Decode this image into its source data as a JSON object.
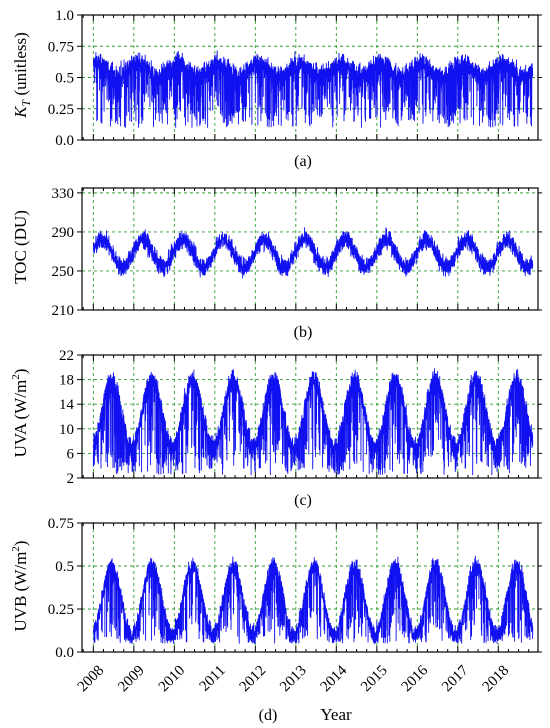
{
  "chart_data": [
    {
      "type": "line",
      "panel_label": "(a)",
      "ylabel": "K_T (unitless)",
      "ylabel_main": "K",
      "ylabel_sub": "T",
      "ylabel_rest": " (unitless)",
      "ylim": [
        0.0,
        1.0
      ],
      "yticks": [
        "0.0",
        "0.25",
        "0.5",
        "0.75",
        "1.0"
      ],
      "ytick_values": [
        0,
        0.25,
        0.5,
        0.75,
        1.0
      ],
      "grid": true,
      "series_color": "#1010f0",
      "grid_color": "#2e9e2e",
      "seasonal": {
        "mean": 0.56,
        "amplitude": 0.05,
        "peak_phase": 0.1,
        "noise": 0.08,
        "dip_probability": 0.22,
        "dip_min": 0.1,
        "max": 0.78,
        "min": 0.08
      }
    },
    {
      "type": "line",
      "panel_label": "(b)",
      "ylabel": "TOC (DU)",
      "ylim": [
        210,
        335
      ],
      "yticks": [
        "210",
        "250",
        "290",
        "330"
      ],
      "ytick_values": [
        210,
        250,
        290,
        330
      ],
      "grid": true,
      "series_color": "#1010f0",
      "grid_color": "#2e9e2e",
      "seasonal": {
        "mean": 268,
        "amplitude": 14,
        "peak_phase": 0.22,
        "noise": 9,
        "dip_probability": 0.0,
        "dip_min": 0,
        "max": 330,
        "min": 222
      }
    },
    {
      "type": "line",
      "panel_label": "(c)",
      "ylabel": "UVA (W/m²)",
      "ylabel_main": "UVA (W/m",
      "ylabel_sup": "2",
      "ylabel_rest": ")",
      "ylim": [
        2,
        22
      ],
      "yticks": [
        "2",
        "6",
        "10",
        "14",
        "18",
        "22"
      ],
      "ytick_values": [
        2,
        6,
        10,
        14,
        18,
        22
      ],
      "grid": true,
      "series_color": "#1010f0",
      "grid_color": "#2e9e2e",
      "seasonal": {
        "mean": 12.5,
        "amplitude": 5.5,
        "peak_phase": 0.45,
        "noise": 1.6,
        "dip_probability": 0.22,
        "dip_min": 2.5,
        "max": 20.5,
        "min": 2.5
      }
    },
    {
      "type": "line",
      "panel_label": "(d)",
      "ylabel": "UVB (W/m²)",
      "ylabel_main": "UVB (W/m",
      "ylabel_sup": "2",
      "ylabel_rest": ")",
      "xlabel": "Year",
      "ylim": [
        0.0,
        0.75
      ],
      "yticks": [
        "0.0",
        "0.25",
        "0.5",
        "0.75"
      ],
      "ytick_values": [
        0,
        0.25,
        0.5,
        0.75
      ],
      "grid": true,
      "series_color": "#1010f0",
      "grid_color": "#2e9e2e",
      "seasonal": {
        "mean": 0.3,
        "amplitude": 0.2,
        "peak_phase": 0.45,
        "noise": 0.05,
        "dip_probability": 0.2,
        "dip_min": 0.05,
        "max": 0.56,
        "min": 0.05
      }
    }
  ],
  "x_axis": {
    "xlabel": "Year",
    "start_year": 2008,
    "end_year": 2018.85,
    "years": [
      "2008",
      "2009",
      "2010",
      "2011",
      "2012",
      "2013",
      "2014",
      "2015",
      "2016",
      "2017",
      "2018"
    ],
    "year_values": [
      2008,
      2009,
      2010,
      2011,
      2012,
      2013,
      2014,
      2015,
      2016,
      2017,
      2018
    ]
  }
}
